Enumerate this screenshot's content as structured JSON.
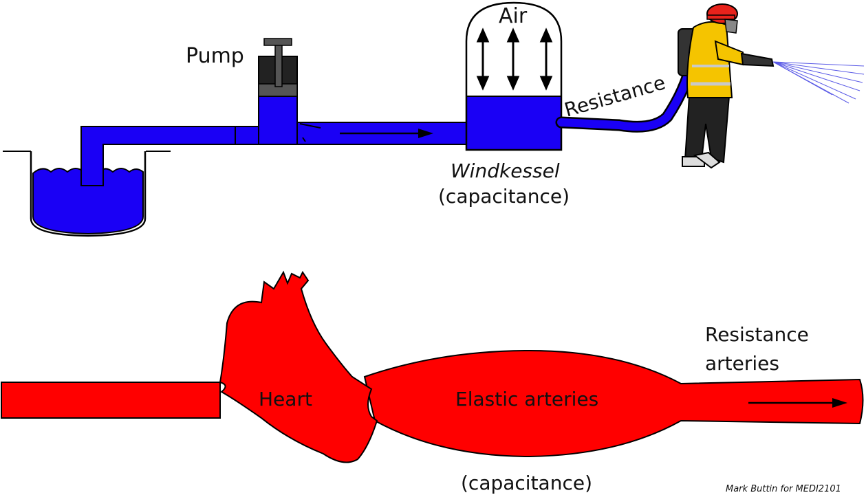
{
  "windkessel_model": {
    "pump_label": "Pump",
    "air_label": "Air",
    "resistance_label": "Resistance",
    "windkessel_label": "Windkessel",
    "capacitance_label": "(capacitance)"
  },
  "circulation_model": {
    "heart_label": "Heart",
    "elastic_arteries_label": "Elastic arteries",
    "resistance_arteries_line1": "Resistance",
    "resistance_arteries_line2": "arteries",
    "capacitance_label": "(capacitance)"
  },
  "credit": "Mark Buttin for MEDI2101",
  "colors": {
    "water": "#1a00f5",
    "blood": "#ff0000",
    "outline": "#000000",
    "firefighter_coat": "#f5c400",
    "firefighter_helmet": "#e8221b",
    "spray": "#5a5ae6"
  }
}
